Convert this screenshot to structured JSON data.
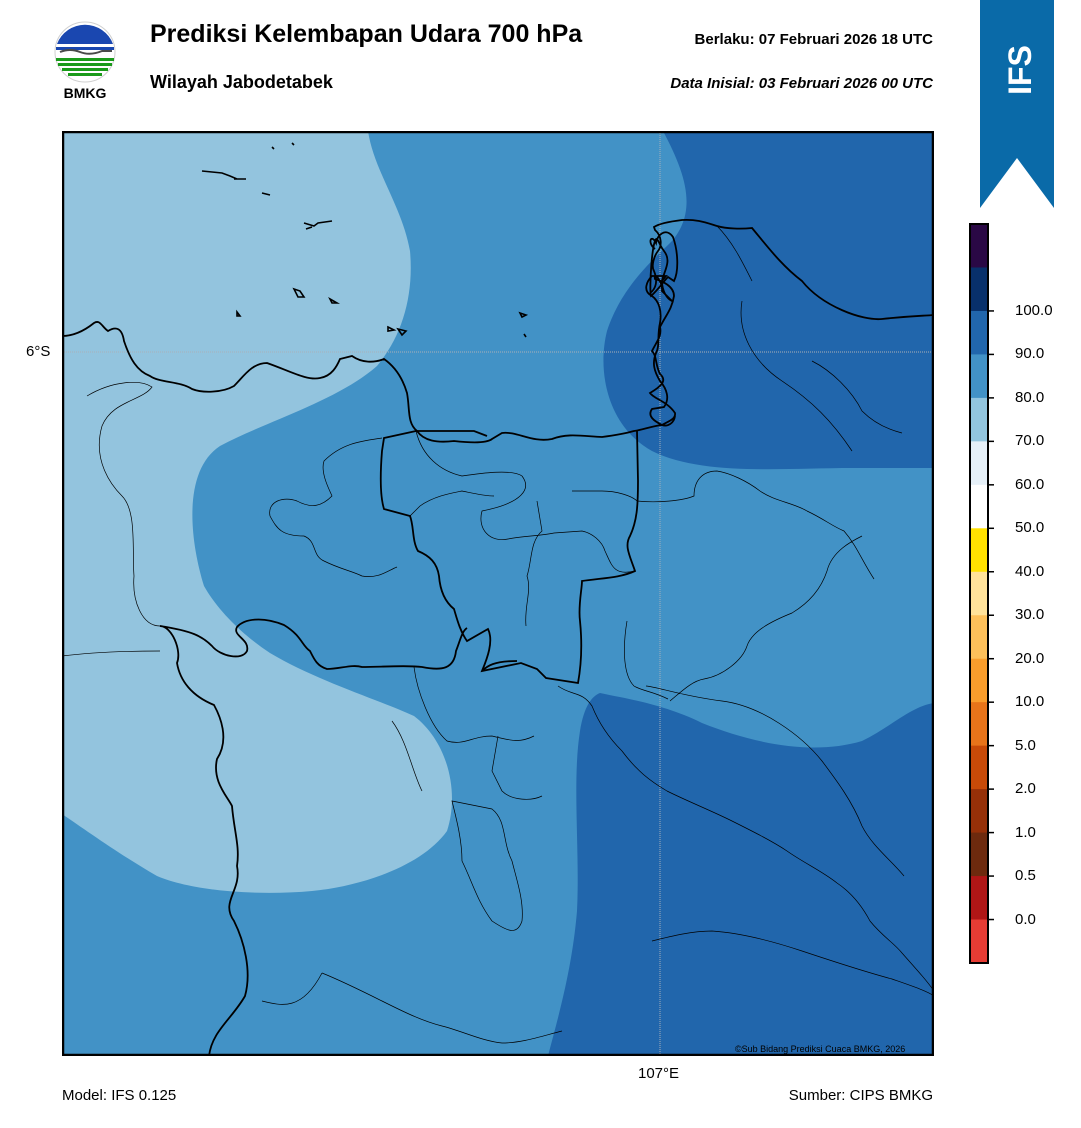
{
  "header": {
    "title": "Prediksi Kelembapan Udara 700 hPa",
    "subtitle": "Wilayah Jabodetabek",
    "valid": "Berlaku:  07 Februari 2026 18 UTC",
    "initial": "Data Inisial:  03 Februari 2026 00 UTC"
  },
  "logo": {
    "text": "BMKG",
    "icon": "bmkg-logo-icon"
  },
  "ribbon": {
    "text": "IFS",
    "color": "#0a6aa8"
  },
  "map": {
    "lat_label": "6°S",
    "lon_label": "107°E",
    "copyright": "©Sub Bidang Prediksi Cuaca BMKG, 2026",
    "fill_colors": {
      "c60_70": "#93c4de",
      "c70_80": "#4292c6",
      "c80_90": "#2166ac"
    }
  },
  "footer": {
    "model": "Model: IFS 0.125",
    "source": "Sumber: CIPS BMKG"
  },
  "colorbar": {
    "labels": [
      "100.0",
      "90.0",
      "80.0",
      "70.0",
      "60.0",
      "50.0",
      "40.0",
      "30.0",
      "20.0",
      "10.0",
      "5.0",
      "2.0",
      "1.0",
      "0.5",
      "0.0"
    ],
    "colors": [
      "#2a0845",
      "#08306b",
      "#2166ac",
      "#4292c6",
      "#92c5de",
      "#e6f0f8",
      "#ffffff",
      "#ffe100",
      "#ffe29a",
      "#fdc05a",
      "#f99d2c",
      "#e8741a",
      "#c84a08",
      "#963008",
      "#6d2a0e",
      "#b01616",
      "#e63c34"
    ]
  }
}
